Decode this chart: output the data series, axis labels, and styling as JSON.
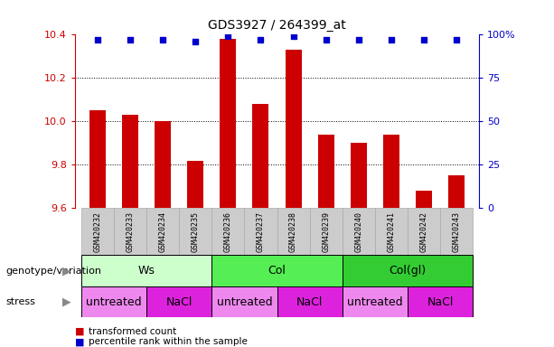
{
  "title": "GDS3927 / 264399_at",
  "samples": [
    "GSM420232",
    "GSM420233",
    "GSM420234",
    "GSM420235",
    "GSM420236",
    "GSM420237",
    "GSM420238",
    "GSM420239",
    "GSM420240",
    "GSM420241",
    "GSM420242",
    "GSM420243"
  ],
  "bar_values": [
    10.05,
    10.03,
    10.0,
    9.82,
    10.38,
    10.08,
    10.33,
    9.94,
    9.9,
    9.94,
    9.68,
    9.75
  ],
  "percentile_values": [
    97,
    97,
    97,
    96,
    99,
    97,
    99,
    97,
    97,
    97,
    97,
    97
  ],
  "ylim_left": [
    9.6,
    10.4
  ],
  "ylim_right": [
    0,
    100
  ],
  "yticks_left": [
    9.6,
    9.8,
    10.0,
    10.2,
    10.4
  ],
  "yticks_right": [
    0,
    25,
    50,
    75,
    100
  ],
  "bar_color": "#cc0000",
  "percentile_color": "#0000cc",
  "bar_width": 0.5,
  "genotype_groups": [
    {
      "label": "Ws",
      "start": 0,
      "end": 3,
      "color": "#ccffcc"
    },
    {
      "label": "Col",
      "start": 4,
      "end": 7,
      "color": "#55ee55"
    },
    {
      "label": "Col(gl)",
      "start": 8,
      "end": 11,
      "color": "#33cc33"
    }
  ],
  "stress_groups": [
    {
      "label": "untreated",
      "start": 0,
      "end": 1,
      "color": "#ee88ee"
    },
    {
      "label": "NaCl",
      "start": 2,
      "end": 3,
      "color": "#dd22dd"
    },
    {
      "label": "untreated",
      "start": 4,
      "end": 5,
      "color": "#ee88ee"
    },
    {
      "label": "NaCl",
      "start": 6,
      "end": 7,
      "color": "#dd22dd"
    },
    {
      "label": "untreated",
      "start": 8,
      "end": 9,
      "color": "#ee88ee"
    },
    {
      "label": "NaCl",
      "start": 10,
      "end": 11,
      "color": "#dd22dd"
    }
  ],
  "genotype_label": "genotype/variation",
  "stress_label": "stress",
  "legend_bar_label": "transformed count",
  "legend_pct_label": "percentile rank within the sample",
  "grid_color": "#555555",
  "bg_color": "#ffffff",
  "tick_color_left": "#cc0000",
  "tick_color_right": "#0000cc",
  "sample_bg_color": "#cccccc"
}
